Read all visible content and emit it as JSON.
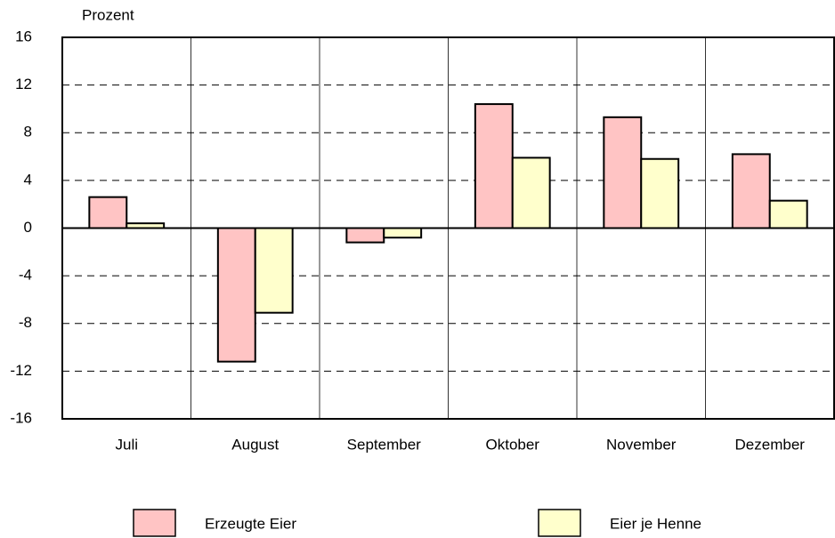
{
  "chart_data": {
    "type": "bar",
    "y_label": "Prozent",
    "categories": [
      "Juli",
      "August",
      "September",
      "Oktober",
      "November",
      "Dezember"
    ],
    "series": [
      {
        "name": "Erzeugte Eier",
        "color": "#ffc4c4",
        "values": [
          2.6,
          -11.2,
          -1.2,
          10.4,
          9.3,
          6.2
        ]
      },
      {
        "name": "Eier je Henne",
        "color": "#ffffcc",
        "values": [
          0.4,
          -7.1,
          -0.8,
          5.9,
          5.8,
          2.3
        ]
      }
    ],
    "ylim": [
      -16,
      16
    ],
    "yticks": [
      -16,
      -12,
      -8,
      -4,
      0,
      4,
      8,
      12,
      16
    ],
    "grid": true,
    "legend": "bottom"
  }
}
